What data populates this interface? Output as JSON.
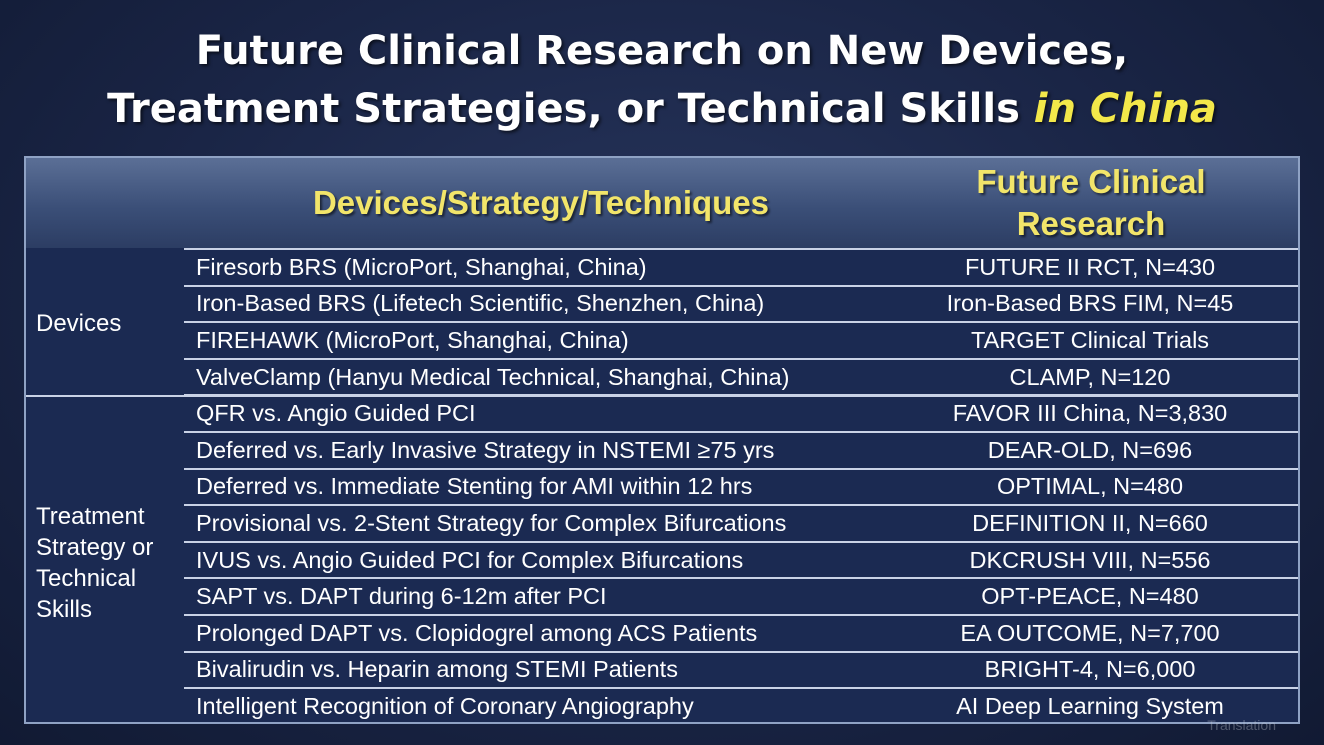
{
  "slide": {
    "title_line1": "Future Clinical Research on New Devices,",
    "title_line2": "Treatment Strategies, or Technical Skills ",
    "title_highlight": "in China",
    "highlight_color": "#f3e84a"
  },
  "table": {
    "headers": {
      "col1": "Devices/Strategy/Techniques",
      "col2_line1": "Future Clinical",
      "col2_line2": "Research"
    },
    "groups": [
      {
        "label_lines": [
          "Devices"
        ],
        "rows": [
          {
            "device": "Firesorb BRS (MicroPort, Shanghai, China)",
            "research": "FUTURE II RCT, N=430"
          },
          {
            "device": "Iron-Based BRS (Lifetech Scientific, Shenzhen, China)",
            "research": "Iron-Based BRS FIM, N=45"
          },
          {
            "device": "FIREHAWK (MicroPort, Shanghai, China)",
            "research": "TARGET Clinical Trials"
          },
          {
            "device": "ValveClamp (Hanyu Medical Technical, Shanghai, China)",
            "research": "CLAMP, N=120"
          }
        ]
      },
      {
        "label_lines": [
          "Treatment",
          "Strategy or",
          "Technical",
          "Skills"
        ],
        "rows": [
          {
            "device": "QFR vs. Angio Guided PCI",
            "research": "FAVOR III China, N=3,830"
          },
          {
            "device": "Deferred vs. Early Invasive Strategy in NSTEMI ≥75 yrs",
            "research": "DEAR-OLD, N=696"
          },
          {
            "device": "Deferred vs. Immediate Stenting for AMI within 12 hrs",
            "research": "OPTIMAL, N=480"
          },
          {
            "device": "Provisional vs. 2-Stent Strategy for Complex Bifurcations",
            "research": "DEFINITION II, N=660"
          },
          {
            "device": "IVUS vs. Angio Guided PCI for Complex Bifurcations",
            "research": "DKCRUSH VIII, N=556"
          },
          {
            "device": "SAPT vs. DAPT during 6-12m after PCI",
            "research": "OPT-PEACE, N=480"
          },
          {
            "device": "Prolonged DAPT vs. Clopidogrel among ACS Patients",
            "research": "EA OUTCOME, N=7,700"
          },
          {
            "device": "Bivalirudin vs. Heparin among STEMI Patients",
            "research": "BRIGHT-4, N=6,000"
          },
          {
            "device": "Intelligent Recognition of Coronary Angiography",
            "research": "AI Deep Learning System"
          }
        ]
      }
    ]
  },
  "watermark": "Translation"
}
